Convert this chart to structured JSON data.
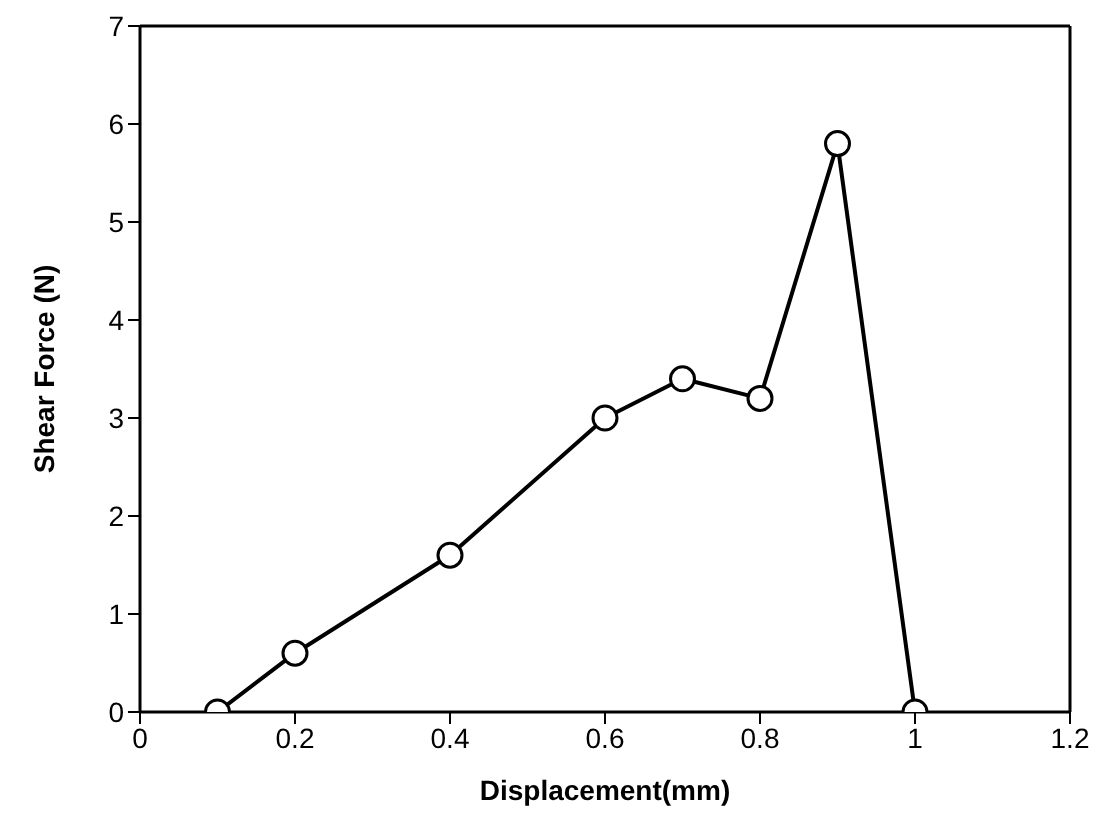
{
  "chart_data": {
    "type": "line",
    "xlabel": "Displacement(mm)",
    "ylabel": "Shear Force (N)",
    "x": [
      0.1,
      0.2,
      0.4,
      0.6,
      0.7,
      0.8,
      0.9,
      1.0
    ],
    "series": [
      {
        "color": "#000000",
        "values": [
          0,
          0.6,
          1.6,
          3.0,
          3.4,
          3.2,
          5.8,
          0
        ]
      }
    ],
    "xlim": [
      0,
      1.2
    ],
    "xticks": [
      0,
      0.2,
      0.4,
      0.6,
      0.8,
      1,
      1.2
    ],
    "ylim": [
      0,
      7
    ],
    "yticks": [
      0,
      1,
      2,
      3,
      4,
      5,
      6,
      7
    ],
    "marker": "circle",
    "grid": false
  }
}
